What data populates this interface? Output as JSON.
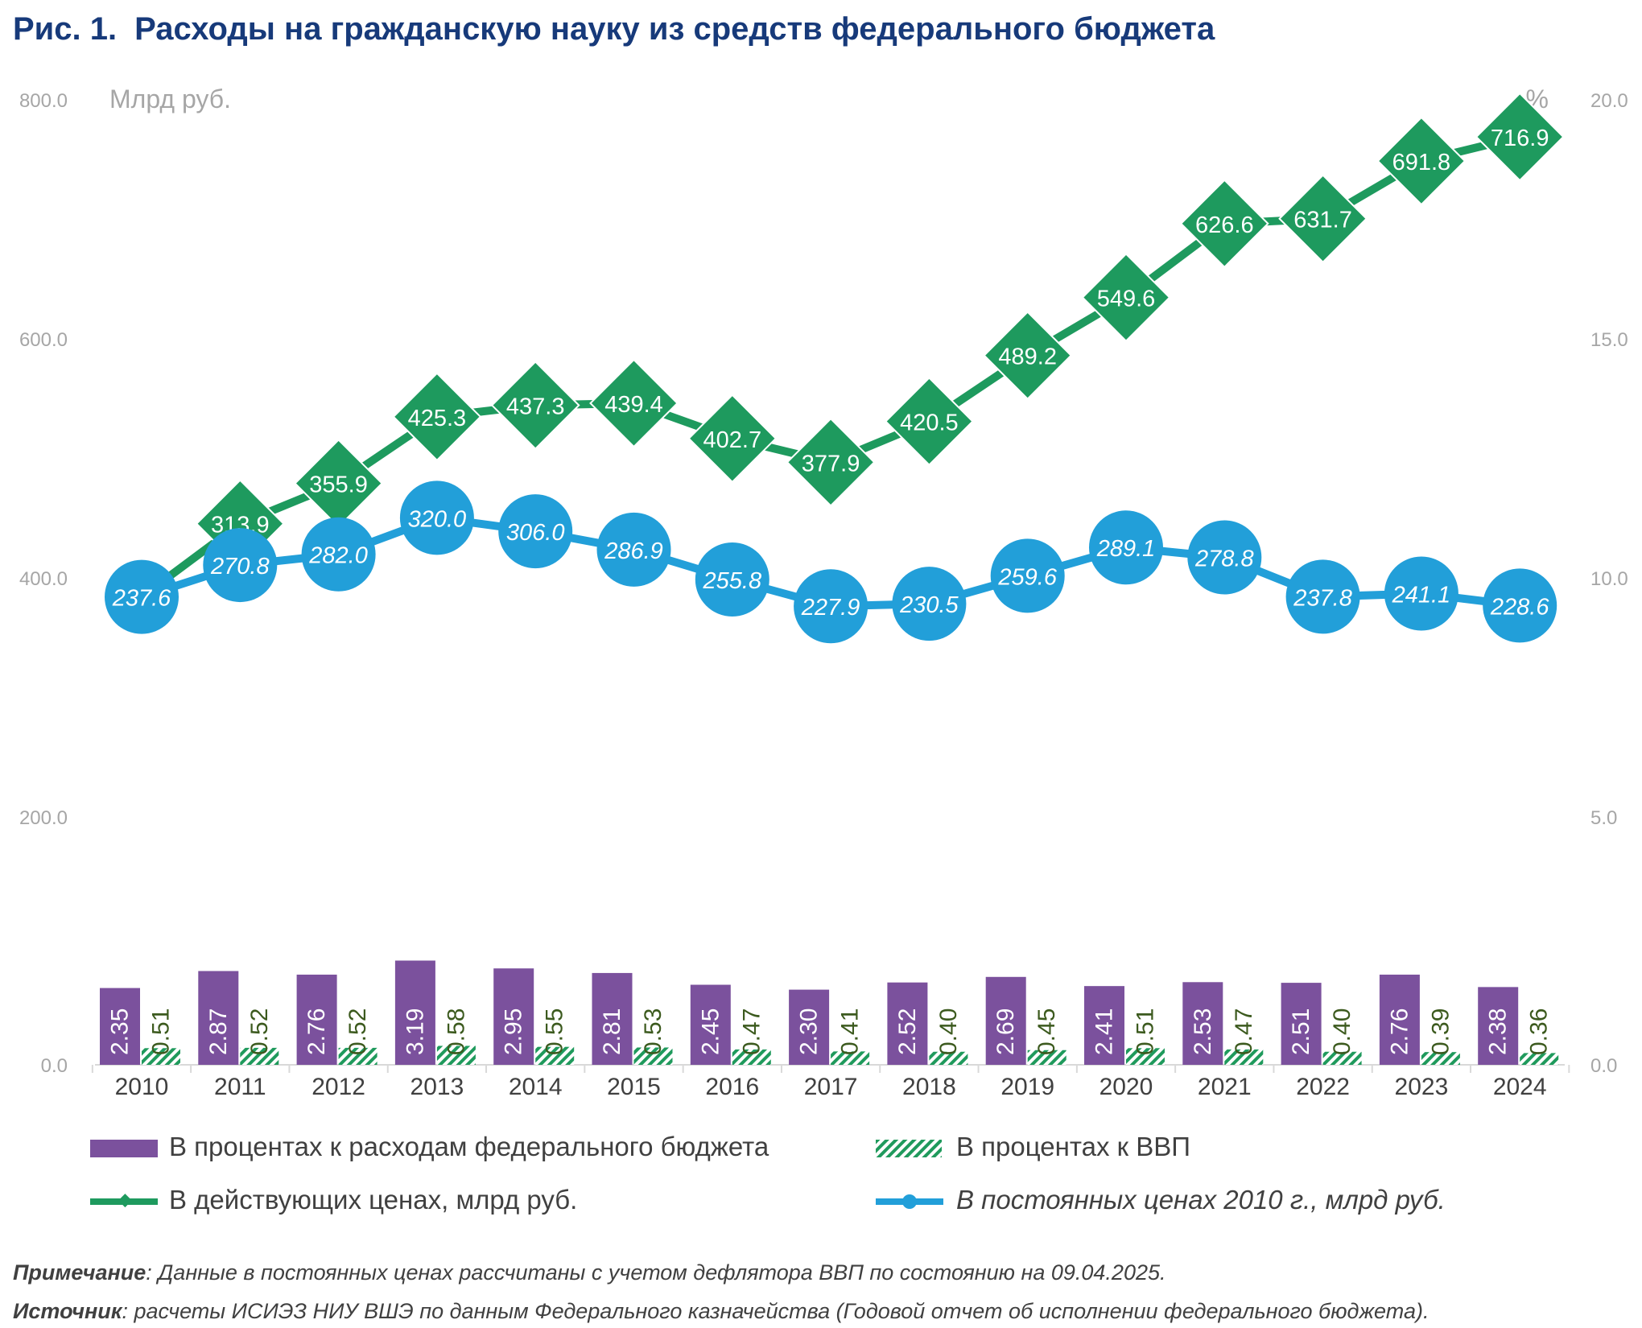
{
  "title": {
    "figure_no": "Рис. 1.",
    "text": "Расходы на гражданскую науку из средств федерального бюджета"
  },
  "axes": {
    "left_unit": "Млрд руб.",
    "right_unit": "%",
    "left_ticks": [
      "800.0",
      "600.0",
      "400.0",
      "200.0"
    ],
    "right_ticks": [
      "20.0",
      "15.0",
      "10.0",
      "5.0"
    ],
    "bottom_tick_left": "0.0",
    "bottom_tick_right": "0.0"
  },
  "chart_data": {
    "type": "bar+line",
    "categories": [
      "2010",
      "2011",
      "2012",
      "2013",
      "2014",
      "2015",
      "2016",
      "2017",
      "2018",
      "2019",
      "2020",
      "2021",
      "2022",
      "2023",
      "2024"
    ],
    "series": [
      {
        "name": "В процентах к расходам федерального бюджета",
        "kind": "bar",
        "color": "#7b519d",
        "values": [
          2.35,
          2.87,
          2.76,
          3.19,
          2.95,
          2.81,
          2.45,
          2.3,
          2.52,
          2.69,
          2.41,
          2.53,
          2.51,
          2.76,
          2.38
        ]
      },
      {
        "name": "В процентах к ВВП",
        "kind": "bar-hatched",
        "color": "#1f9a5c",
        "values": [
          0.51,
          0.52,
          0.52,
          0.58,
          0.55,
          0.53,
          0.47,
          0.41,
          0.4,
          0.45,
          0.51,
          0.47,
          0.4,
          0.39,
          0.36
        ]
      },
      {
        "name": "В действующих ценах, млрд руб.",
        "kind": "line-diamond",
        "color": "#1e9a5e",
        "values": [
          237.6,
          313.9,
          355.9,
          425.3,
          437.3,
          439.4,
          402.7,
          377.9,
          420.5,
          489.2,
          549.6,
          626.6,
          631.7,
          691.8,
          716.9
        ]
      },
      {
        "name": "В постоянных ценах 2010 г., млрд руб.",
        "kind": "line-circle",
        "color": "#229fd9",
        "values": [
          237.6,
          270.8,
          282.0,
          320.0,
          306.0,
          286.9,
          255.8,
          227.9,
          230.5,
          259.6,
          289.1,
          278.8,
          237.8,
          241.1,
          228.6
        ]
      }
    ],
    "left_axis": {
      "unit": "Млрд руб.",
      "ticks": [
        200,
        400,
        600,
        800
      ]
    },
    "right_axis": {
      "unit": "%",
      "ticks": [
        0,
        5,
        10,
        15,
        20
      ]
    }
  },
  "legend": {
    "item1": "В процентах к расходам федерального бюджета",
    "item2": "В процентах к ВВП",
    "item3": "В действующих ценах, млрд руб.",
    "item4": "В постоянных ценах 2010 г., млрд руб."
  },
  "notes": {
    "note_label": "Примечание",
    "note_text": ": Данные в постоянных ценах рассчитаны с учетом дефлятора ВВП по состоянию на 09.04.2025.",
    "source_label": "Источник",
    "source_text": ": расчеты ИСИЭЗ НИУ ВШЭ по данным Федерального казначейства (Годовой отчет об исполнении федерального бюджета)."
  }
}
